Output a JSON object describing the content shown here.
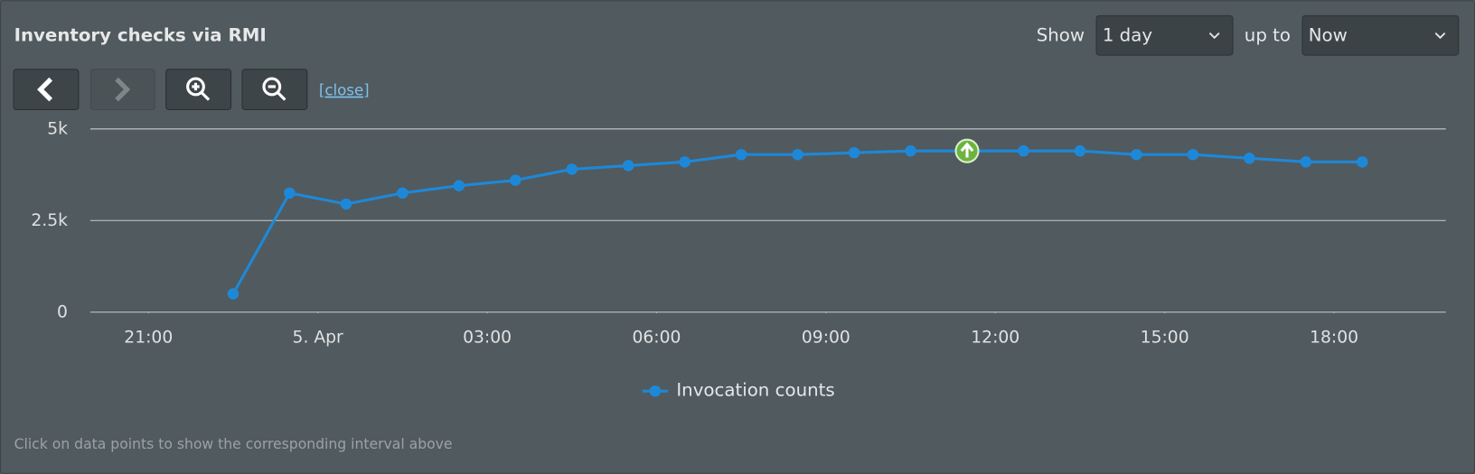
{
  "header": {
    "title": "Inventory checks via RMI",
    "show_label": "Show",
    "range": "1 day",
    "up_to_label": "up to",
    "end": "Now"
  },
  "controls": {
    "close": "[close]"
  },
  "chart_data": {
    "type": "line",
    "x": [
      -1.5,
      -0.5,
      0.5,
      1.5,
      2.5,
      3.5,
      4.5,
      5.5,
      6.5,
      7.5,
      8.5,
      9.5,
      10.5,
      11.5,
      12.5,
      13.5,
      14.5,
      15.5,
      16.5,
      17.5,
      18.5
    ],
    "series": [
      {
        "name": "Invocation counts",
        "color": "#1e88d8",
        "values": [
          500,
          3250,
          2950,
          3250,
          3450,
          3600,
          3900,
          4000,
          4100,
          4300,
          4300,
          4350,
          4400,
          4400,
          4400,
          4400,
          4300,
          4300,
          4200,
          4100,
          4100
        ]
      }
    ],
    "xlim": [
      -4.03,
      19.98
    ],
    "xticks": [
      {
        "value": -3,
        "label": "21:00"
      },
      {
        "value": 0,
        "label": "5. Apr"
      },
      {
        "value": 3,
        "label": "03:00"
      },
      {
        "value": 6,
        "label": "06:00"
      },
      {
        "value": 9,
        "label": "09:00"
      },
      {
        "value": 12,
        "label": "12:00"
      },
      {
        "value": 15,
        "label": "15:00"
      },
      {
        "value": 18,
        "label": "18:00"
      }
    ],
    "ylim": [
      0,
      5000
    ],
    "yticks": [
      0,
      {
        "value": 2500,
        "label": "2.5k"
      },
      {
        "value": 5000,
        "label": "5k"
      }
    ],
    "grid": true,
    "highlight_index": 13,
    "legend": "bottom"
  },
  "footer": {
    "hint": "Click on data points to show the corresponding interval above"
  }
}
